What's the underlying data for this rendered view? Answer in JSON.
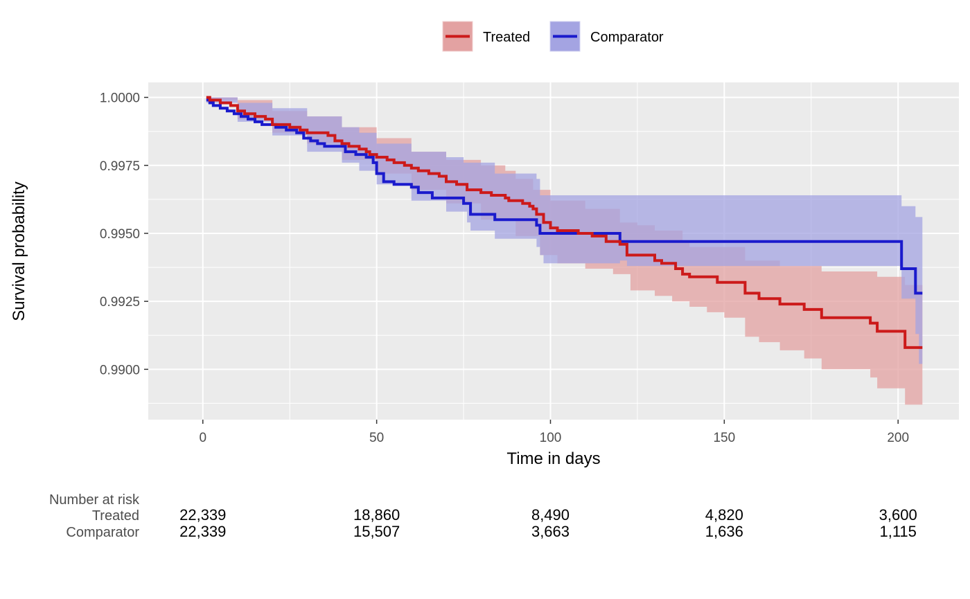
{
  "chart_data": {
    "type": "line",
    "xlabel": "Time in days",
    "ylabel": "Survival probability",
    "xlim": [
      -15.7,
      217.5
    ],
    "ylim": [
      0.98815,
      1.00055
    ],
    "x_ticks": [
      0,
      50,
      100,
      150,
      200
    ],
    "x_tick_labels": [
      "0",
      "50",
      "100",
      "150",
      "200"
    ],
    "y_ticks": [
      0.99,
      0.9925,
      0.995,
      0.9975,
      1.0
    ],
    "y_tick_labels": [
      "0.9900",
      "0.9925",
      "0.9950",
      "0.9975",
      "1.0000"
    ],
    "grid": true,
    "legend": {
      "position": "top",
      "entries": [
        "Treated",
        "Comparator"
      ]
    },
    "series": [
      {
        "name": "Treated",
        "color": "#cc1a1a",
        "band_color": "#e3a2a2",
        "points": [
          [
            1,
            1.0
          ],
          [
            2,
            0.9999
          ],
          [
            5,
            0.9998
          ],
          [
            8,
            0.9997
          ],
          [
            10,
            0.9995
          ],
          [
            12,
            0.9994
          ],
          [
            15,
            0.9993
          ],
          [
            18,
            0.9992
          ],
          [
            20,
            0.999
          ],
          [
            25,
            0.9989
          ],
          [
            28,
            0.9988
          ],
          [
            30,
            0.9987
          ],
          [
            36,
            0.9986
          ],
          [
            38,
            0.9984
          ],
          [
            40,
            0.9983
          ],
          [
            42,
            0.9982
          ],
          [
            45,
            0.9981
          ],
          [
            47,
            0.998
          ],
          [
            48,
            0.9979
          ],
          [
            50,
            0.9978
          ],
          [
            53,
            0.9977
          ],
          [
            55,
            0.9976
          ],
          [
            58,
            0.9975
          ],
          [
            60,
            0.9974
          ],
          [
            62,
            0.9973
          ],
          [
            65,
            0.9972
          ],
          [
            68,
            0.9971
          ],
          [
            70,
            0.9969
          ],
          [
            73,
            0.9968
          ],
          [
            76,
            0.9966
          ],
          [
            80,
            0.9965
          ],
          [
            83,
            0.9964
          ],
          [
            87,
            0.9963
          ],
          [
            88,
            0.9962
          ],
          [
            92,
            0.9961
          ],
          [
            94,
            0.996
          ],
          [
            95,
            0.9959
          ],
          [
            96,
            0.9957
          ],
          [
            98,
            0.9954
          ],
          [
            100,
            0.9952
          ],
          [
            102,
            0.9951
          ],
          [
            108,
            0.995
          ],
          [
            112,
            0.9949
          ],
          [
            116,
            0.9947
          ],
          [
            120,
            0.9946
          ],
          [
            122,
            0.9942
          ],
          [
            130,
            0.994
          ],
          [
            132,
            0.9939
          ],
          [
            136,
            0.9937
          ],
          [
            138,
            0.9935
          ],
          [
            140,
            0.9934
          ],
          [
            148,
            0.9932
          ],
          [
            156,
            0.9928
          ],
          [
            160,
            0.9926
          ],
          [
            166,
            0.9924
          ],
          [
            173,
            0.9922
          ],
          [
            178,
            0.9919
          ],
          [
            192,
            0.9917
          ],
          [
            194,
            0.9914
          ],
          [
            202,
            0.9908
          ],
          [
            207,
            0.9908
          ]
        ],
        "lower": [
          [
            1,
            0.9999
          ],
          [
            10,
            0.9992
          ],
          [
            20,
            0.9987
          ],
          [
            30,
            0.9983
          ],
          [
            40,
            0.9977
          ],
          [
            50,
            0.9972
          ],
          [
            60,
            0.9966
          ],
          [
            70,
            0.9961
          ],
          [
            80,
            0.9955
          ],
          [
            90,
            0.9949
          ],
          [
            97,
            0.9942
          ],
          [
            102,
            0.9939
          ],
          [
            110,
            0.9937
          ],
          [
            118,
            0.9935
          ],
          [
            123,
            0.9929
          ],
          [
            130,
            0.9927
          ],
          [
            135,
            0.9925
          ],
          [
            140,
            0.9923
          ],
          [
            145,
            0.9921
          ],
          [
            150,
            0.9919
          ],
          [
            156,
            0.9912
          ],
          [
            160,
            0.991
          ],
          [
            166,
            0.9907
          ],
          [
            173,
            0.9904
          ],
          [
            178,
            0.99
          ],
          [
            192,
            0.9897
          ],
          [
            194,
            0.9893
          ],
          [
            202,
            0.9887
          ],
          [
            207,
            0.9887
          ]
        ],
        "upper": [
          [
            1,
            1.0
          ],
          [
            10,
            0.9999
          ],
          [
            20,
            0.9995
          ],
          [
            30,
            0.9993
          ],
          [
            40,
            0.9989
          ],
          [
            50,
            0.9985
          ],
          [
            60,
            0.998
          ],
          [
            70,
            0.9977
          ],
          [
            80,
            0.9975
          ],
          [
            87,
            0.9973
          ],
          [
            90,
            0.997
          ],
          [
            95,
            0.9966
          ],
          [
            100,
            0.9962
          ],
          [
            110,
            0.9959
          ],
          [
            120,
            0.9954
          ],
          [
            125,
            0.9953
          ],
          [
            130,
            0.9951
          ],
          [
            138,
            0.9947
          ],
          [
            140,
            0.9945
          ],
          [
            156,
            0.994
          ],
          [
            166,
            0.9938
          ],
          [
            178,
            0.9936
          ],
          [
            194,
            0.9934
          ],
          [
            202,
            0.9931
          ],
          [
            207,
            0.9931
          ]
        ]
      },
      {
        "name": "Comparator",
        "color": "#1a1acc",
        "band_color": "#a4a4e2",
        "points": [
          [
            1,
            0.9999
          ],
          [
            2,
            0.9998
          ],
          [
            3,
            0.9997
          ],
          [
            5,
            0.9996
          ],
          [
            7,
            0.9995
          ],
          [
            9,
            0.9994
          ],
          [
            11,
            0.9993
          ],
          [
            13,
            0.9992
          ],
          [
            15,
            0.9991
          ],
          [
            17,
            0.999
          ],
          [
            21,
            0.9989
          ],
          [
            24,
            0.9988
          ],
          [
            27,
            0.9987
          ],
          [
            29,
            0.9985
          ],
          [
            31,
            0.9984
          ],
          [
            33,
            0.9983
          ],
          [
            35,
            0.9982
          ],
          [
            41,
            0.998
          ],
          [
            44,
            0.9979
          ],
          [
            47,
            0.9978
          ],
          [
            49,
            0.9976
          ],
          [
            50,
            0.9972
          ],
          [
            52,
            0.9969
          ],
          [
            55,
            0.9968
          ],
          [
            60,
            0.9967
          ],
          [
            62,
            0.9965
          ],
          [
            66,
            0.9963
          ],
          [
            75,
            0.9961
          ],
          [
            77,
            0.9957
          ],
          [
            84,
            0.9955
          ],
          [
            96,
            0.9953
          ],
          [
            97,
            0.995
          ],
          [
            120,
            0.9947
          ],
          [
            200,
            0.9947
          ],
          [
            201,
            0.9937
          ],
          [
            205,
            0.9928
          ],
          [
            207,
            0.9928
          ]
        ],
        "lower": [
          [
            1,
            0.9998
          ],
          [
            10,
            0.9991
          ],
          [
            20,
            0.9986
          ],
          [
            30,
            0.998
          ],
          [
            40,
            0.9976
          ],
          [
            45,
            0.9973
          ],
          [
            50,
            0.9968
          ],
          [
            60,
            0.9962
          ],
          [
            70,
            0.9958
          ],
          [
            76,
            0.9954
          ],
          [
            77,
            0.9951
          ],
          [
            84,
            0.9948
          ],
          [
            96,
            0.9945
          ],
          [
            97,
            0.9942
          ],
          [
            98,
            0.9939
          ],
          [
            120,
            0.994
          ],
          [
            122,
            0.9938
          ],
          [
            200,
            0.9938
          ],
          [
            201,
            0.9926
          ],
          [
            205,
            0.9913
          ],
          [
            206,
            0.9902
          ],
          [
            207,
            0.9902
          ]
        ],
        "upper": [
          [
            1,
            1.0
          ],
          [
            10,
            0.9998
          ],
          [
            20,
            0.9996
          ],
          [
            30,
            0.9993
          ],
          [
            40,
            0.9989
          ],
          [
            45,
            0.9987
          ],
          [
            50,
            0.9983
          ],
          [
            60,
            0.998
          ],
          [
            70,
            0.9978
          ],
          [
            75,
            0.9976
          ],
          [
            84,
            0.9972
          ],
          [
            96,
            0.997
          ],
          [
            97,
            0.9964
          ],
          [
            120,
            0.9964
          ],
          [
            200,
            0.9964
          ],
          [
            201,
            0.996
          ],
          [
            205,
            0.9956
          ],
          [
            207,
            0.9956
          ]
        ]
      }
    ]
  },
  "risk_table": {
    "header": "Number at risk",
    "times": [
      0,
      50,
      100,
      150,
      200
    ],
    "rows": [
      {
        "label": "Treated",
        "values": [
          "22,339",
          "18,860",
          "8,490",
          "4,820",
          "3,600"
        ]
      },
      {
        "label": "Comparator",
        "values": [
          "22,339",
          "15,507",
          "3,663",
          "1,636",
          "1,115"
        ]
      }
    ]
  }
}
